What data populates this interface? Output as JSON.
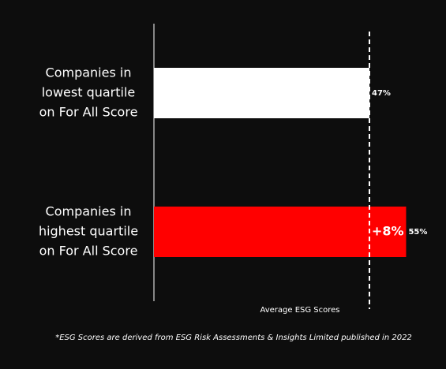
{
  "chart_data": {
    "type": "hbar",
    "categories": [
      [
        "Companies in",
        "lowest quartile",
        "on For All Score"
      ],
      [
        "Companies in",
        "highest quartile",
        "on For All Score"
      ]
    ],
    "values": [
      47,
      55
    ],
    "value_labels": [
      "47%",
      "55%"
    ],
    "colors": [
      "#ffffff",
      "#ff0000"
    ],
    "xlim": [
      0,
      60
    ],
    "reference_line": {
      "value": 47,
      "label": "Average ESG Scores"
    },
    "annotation": "+8%",
    "note": "*ESG Scores are derived from ESG Risk Assessments & Insights Limited published in 2022"
  }
}
